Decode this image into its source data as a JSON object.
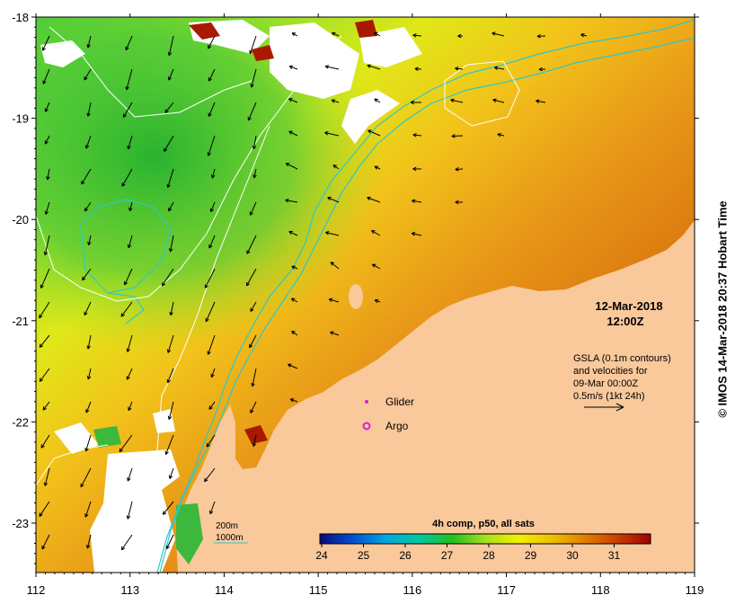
{
  "map": {
    "x_ticks": [
      "112",
      "113",
      "114",
      "115",
      "116",
      "117",
      "118",
      "119"
    ],
    "y_ticks": [
      "-18",
      "-19",
      "-20",
      "-21",
      "-22",
      "-23"
    ],
    "colors": {
      "land": "#f9c89b",
      "cloud": "#ffffff",
      "contour_bathy": "#2ec8c8",
      "contour_gsla": "#ffffff",
      "arrow": "#000000",
      "glider": "#d81fd8",
      "argo": "#d81fd8"
    }
  },
  "annotations": {
    "date": "12-Mar-2018",
    "time": "12:00Z",
    "gsla_line1": "GSLA (0.1m contours)",
    "gsla_line2": "and velocities for",
    "gsla_line3": "09-Mar 00:00Z",
    "gsla_line4": "0.5m/s (1kt 24h)",
    "glider_label": "Glider",
    "argo_label": "Argo",
    "bathy_200": "200m",
    "bathy_1000": "1000m"
  },
  "colorbar": {
    "title": "4h comp, p50, all sats",
    "ticks": [
      "24",
      "25",
      "26",
      "27",
      "28",
      "29",
      "30",
      "31"
    ],
    "stops": [
      "#0a0a80",
      "#0050d0",
      "#00a8e0",
      "#00c8a0",
      "#20c020",
      "#a8e020",
      "#f0f000",
      "#f0c000",
      "#e08000",
      "#c84000",
      "#a00000"
    ]
  },
  "credit": "© IMOS 14-Mar-2018 20:37 Hobart Time"
}
